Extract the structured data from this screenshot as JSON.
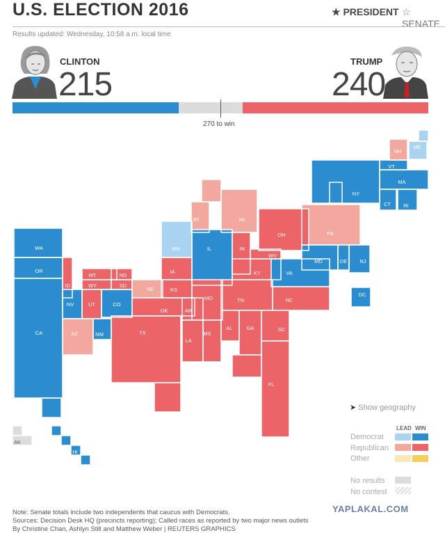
{
  "header": {
    "title": "U.S. ELECTION 2016",
    "tabs": [
      {
        "label": "PRESIDENT",
        "icon": "star-filled-icon",
        "active": true
      },
      {
        "label": "SENATE",
        "icon": "star-outline-icon",
        "active": false
      }
    ],
    "updated": "Results updated: Wednesday, 10:58 a.m. local time"
  },
  "candidates": {
    "clinton": {
      "name": "CLINTON",
      "votes": "215",
      "color": "#2b8cd0"
    },
    "trump": {
      "name": "TRUMP",
      "votes": "240",
      "color": "#ec6468"
    }
  },
  "bar": {
    "to_win_label": "270 to win",
    "dem": 215,
    "rep": 240,
    "total": 538,
    "undecided_color": "#dcdcdc"
  },
  "colors": {
    "dem_win": "#2b8cd0",
    "dem_lead": "#a9d3f0",
    "rep_win": "#ec6468",
    "rep_lead": "#f2a89e",
    "other_win": "#f4cf5d",
    "other_lead": "#fbe7b7",
    "no_results": "#dcdcdc"
  },
  "map": {
    "states": [
      {
        "abbr": "ME",
        "status": "dem_lead"
      },
      {
        "abbr": "NH",
        "status": "rep_lead"
      },
      {
        "abbr": "VT",
        "status": "dem_win"
      },
      {
        "abbr": "MA",
        "status": "dem_win"
      },
      {
        "abbr": "NY",
        "status": "dem_win"
      },
      {
        "abbr": "CT",
        "status": "dem_win"
      },
      {
        "abbr": "RI",
        "status": "dem_win"
      },
      {
        "abbr": "WI",
        "status": "rep_lead"
      },
      {
        "abbr": "MI",
        "status": "rep_lead"
      },
      {
        "abbr": "PA",
        "status": "rep_lead"
      },
      {
        "abbr": "OH",
        "status": "rep_win"
      },
      {
        "abbr": "MN",
        "status": "dem_lead"
      },
      {
        "abbr": "IL",
        "status": "dem_win"
      },
      {
        "abbr": "IN",
        "status": "rep_win"
      },
      {
        "abbr": "WA",
        "status": "dem_win"
      },
      {
        "abbr": "OR",
        "status": "dem_win"
      },
      {
        "abbr": "WV",
        "status": "rep_win"
      },
      {
        "abbr": "MD",
        "status": "dem_win"
      },
      {
        "abbr": "DE",
        "status": "dem_win"
      },
      {
        "abbr": "NJ",
        "status": "dem_win"
      },
      {
        "abbr": "KY",
        "status": "rep_win"
      },
      {
        "abbr": "VA",
        "status": "dem_win"
      },
      {
        "abbr": "DC",
        "status": "dem_win"
      },
      {
        "abbr": "MT",
        "status": "rep_win"
      },
      {
        "abbr": "ND",
        "status": "rep_win"
      },
      {
        "abbr": "ID",
        "status": "rep_win"
      },
      {
        "abbr": "WY",
        "status": "rep_win"
      },
      {
        "abbr": "SD",
        "status": "rep_win"
      },
      {
        "abbr": "IA",
        "status": "rep_win"
      },
      {
        "abbr": "NE",
        "status": "rep_lead"
      },
      {
        "abbr": "KS",
        "status": "rep_win"
      },
      {
        "abbr": "MO",
        "status": "rep_win"
      },
      {
        "abbr": "TN",
        "status": "rep_win"
      },
      {
        "abbr": "NC",
        "status": "rep_win"
      },
      {
        "abbr": "NV",
        "status": "dem_win"
      },
      {
        "abbr": "UT",
        "status": "rep_win"
      },
      {
        "abbr": "CO",
        "status": "dem_win"
      },
      {
        "abbr": "OK",
        "status": "rep_win"
      },
      {
        "abbr": "AR",
        "status": "rep_win"
      },
      {
        "abbr": "AL",
        "status": "rep_win"
      },
      {
        "abbr": "GA",
        "status": "rep_win"
      },
      {
        "abbr": "SC",
        "status": "rep_win"
      },
      {
        "abbr": "CA",
        "status": "dem_win"
      },
      {
        "abbr": "AZ",
        "status": "rep_lead"
      },
      {
        "abbr": "NM",
        "status": "dem_win"
      },
      {
        "abbr": "TX",
        "status": "rep_win"
      },
      {
        "abbr": "LA",
        "status": "rep_win"
      },
      {
        "abbr": "MS",
        "status": "rep_win"
      },
      {
        "abbr": "FL",
        "status": "rep_win"
      },
      {
        "abbr": "AK",
        "status": "no_results"
      },
      {
        "abbr": "HI",
        "status": "dem_win"
      }
    ]
  },
  "legend": {
    "show_geography": "Show geography",
    "lead": "LEAD",
    "win": "WIN",
    "democratic": "Democrat",
    "republican": "Republican",
    "other": "Other",
    "no_results": "No results",
    "no_contest": "No contest"
  },
  "footer": {
    "note": "Note: Senate totals include two independents that caucus with Democrats.",
    "sources": "Sources: Decision Desk HQ (precincts reporting); Called races as reported by two major news outlets",
    "byline": "By Christine Chan, Ashlyn Still and Matthew Weber | REUTERS GRAPHICS",
    "watermark": "YAPLAKAL.COM"
  }
}
